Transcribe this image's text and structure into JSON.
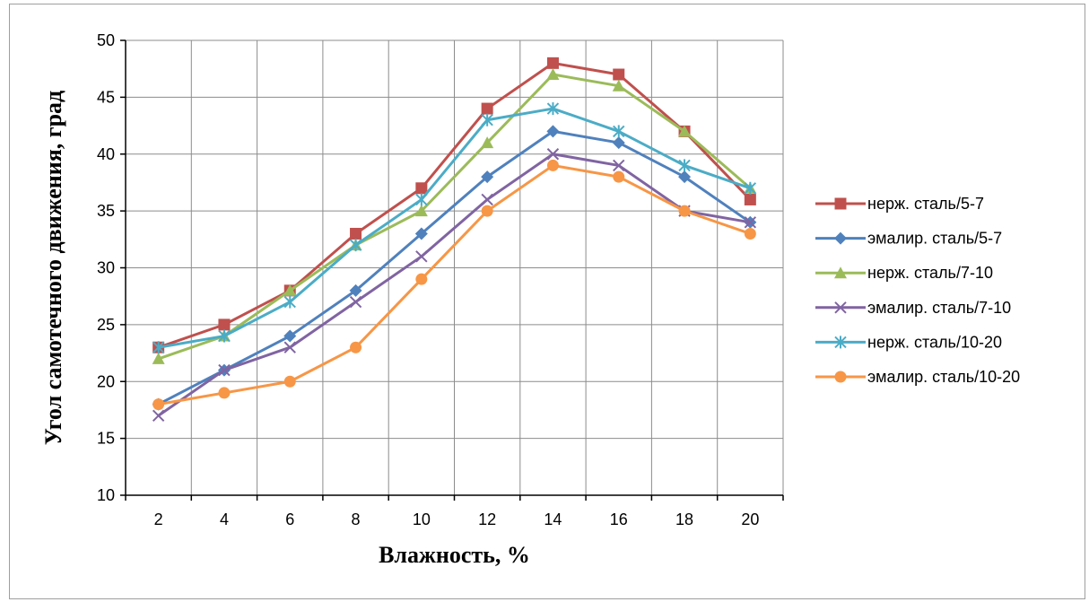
{
  "chart_data": {
    "type": "line",
    "title": "",
    "xlabel": "Влажность, %",
    "ylabel": "Угол самотечного движения, град",
    "categories": [
      "2",
      "4",
      "6",
      "8",
      "10",
      "12",
      "14",
      "16",
      "18",
      "20"
    ],
    "ylim": [
      10,
      50
    ],
    "yticks": [
      10,
      15,
      20,
      25,
      30,
      35,
      40,
      45,
      50
    ],
    "grid": true,
    "legend_position": "right",
    "series": [
      {
        "name": "нерж. сталь/5-7",
        "color": "#C0504D",
        "marker": "square",
        "values": [
          23,
          25,
          28,
          33,
          37,
          44,
          48,
          47,
          42,
          36
        ]
      },
      {
        "name": "эмалир. сталь/5-7",
        "color": "#4F81BD",
        "marker": "diamond",
        "values": [
          18,
          21,
          24,
          28,
          33,
          38,
          42,
          41,
          38,
          34
        ]
      },
      {
        "name": "нерж. сталь/7-10",
        "color": "#9BBB59",
        "marker": "triangle",
        "values": [
          22,
          24,
          28,
          32,
          35,
          41,
          47,
          46,
          42,
          37
        ]
      },
      {
        "name": "эмалир. сталь/7-10",
        "color": "#8064A2",
        "marker": "x",
        "values": [
          17,
          21,
          23,
          27,
          31,
          36,
          40,
          39,
          35,
          34
        ]
      },
      {
        "name": "нерж. сталь/10-20",
        "color": "#4BACC6",
        "marker": "star",
        "values": [
          23,
          24,
          27,
          32,
          36,
          43,
          44,
          42,
          39,
          37
        ]
      },
      {
        "name": "эмалир. сталь/10-20",
        "color": "#F79646",
        "marker": "circle",
        "values": [
          18,
          19,
          20,
          23,
          29,
          35,
          39,
          38,
          35,
          33
        ]
      }
    ]
  }
}
